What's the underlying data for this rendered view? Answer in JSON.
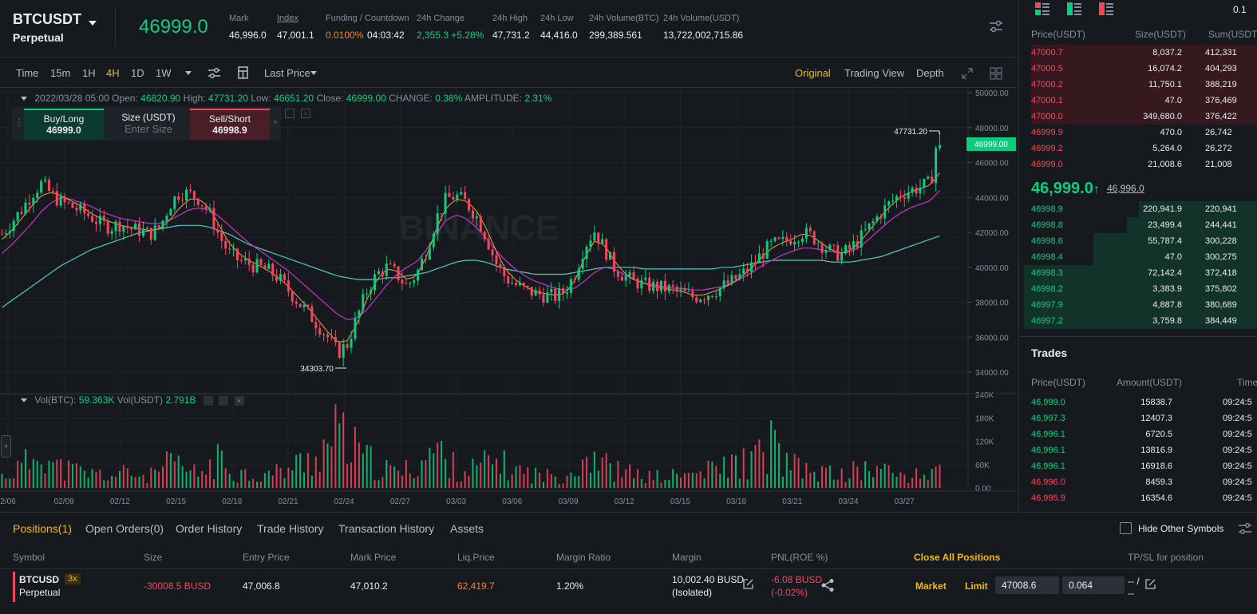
{
  "header": {
    "symbol": "BTCUSDT",
    "contract": "Perpetual",
    "last_price": "46999.0",
    "stats": [
      {
        "label": "Mark",
        "value": "46,996.0"
      },
      {
        "label": "Index",
        "value": "47,001.1"
      },
      {
        "label": "Funding / Countdown",
        "value": "0.0100%",
        "value2": "04:03:42"
      },
      {
        "label": "24h Change",
        "value": "2,355.3 +5.28%"
      },
      {
        "label": "24h High",
        "value": "47,731.2"
      },
      {
        "label": "24h Low",
        "value": "44,416.0"
      },
      {
        "label": "24h Volume(BTC)",
        "value": "299,389.561"
      },
      {
        "label": "24h Volume(USDT)",
        "value": "13,722,002,715.86"
      }
    ]
  },
  "toolbar": {
    "intervals": [
      "Time",
      "15m",
      "1H",
      "4H",
      "1D",
      "1W"
    ],
    "active_interval": "4H",
    "price_type": "Last Price",
    "views": [
      "Original",
      "Trading View",
      "Depth"
    ],
    "active_view": "Original"
  },
  "chart": {
    "ohlc": {
      "date": "2022/03/28 05:00",
      "open_label": "Open:",
      "open": "46820.90",
      "high_label": "High:",
      "high": "47731.20",
      "low_label": "Low:",
      "low": "46651.20",
      "close_label": "Close:",
      "close": "46999.00",
      "change_label": "CHANGE:",
      "change": "0.38%",
      "amp_label": "AMPLITUDE:",
      "amp": "2.31%"
    },
    "order_widget": {
      "buy_label": "Buy/Long",
      "buy_price": "46999.0",
      "size_label": "Size (USDT)",
      "size_placeholder": "Enter Size",
      "sell_label": "Sell/Short",
      "sell_price": "46998.9"
    },
    "price_axis": [
      "50000.00",
      "48000.00",
      "46000.00",
      "44000.00",
      "42000.00",
      "40000.00",
      "38000.00",
      "36000.00",
      "34000.00"
    ],
    "current_price_tag": "46999.00",
    "high_marker": "47731.20",
    "low_marker": "34303.70",
    "vol_labels": {
      "btc_label": "Vol(BTC):",
      "btc": "59.363K",
      "usdt_label": "Vol(USDT)",
      "usdt": "2.791B"
    },
    "vol_axis": [
      "240K",
      "180K",
      "120K",
      "60K",
      "0.00"
    ],
    "date_axis": [
      "2/06",
      "02/09",
      "02/12",
      "02/15",
      "02/18",
      "02/21",
      "02/24",
      "02/27",
      "03/03",
      "03/06",
      "03/09",
      "03/12",
      "03/15",
      "03/18",
      "03/21",
      "03/24",
      "03/27"
    ],
    "watermark": "BINANCE"
  },
  "chart_data": {
    "type": "candlestick",
    "y_range": [
      34000,
      50000
    ],
    "close_path": [
      41900,
      42600,
      43300,
      44200,
      44800,
      44200,
      43700,
      43500,
      43200,
      42900,
      42500,
      42300,
      42500,
      42200,
      42100,
      41900,
      42300,
      43600,
      44300,
      44200,
      43900,
      43100,
      41800,
      40800,
      40400,
      40200,
      40000,
      39800,
      39400,
      38700,
      38000,
      37400,
      36700,
      36000,
      35100,
      35600,
      37200,
      38700,
      39600,
      40000,
      39600,
      38900,
      39600,
      41000,
      42800,
      43900,
      44100,
      43700,
      43000,
      41800,
      40300,
      39400,
      39000,
      38700,
      38500,
      38400,
      38300,
      38600,
      39600,
      41200,
      42100,
      41100,
      40000,
      39500,
      39200,
      39000,
      38900,
      38800,
      38700,
      38500,
      38300,
      38400,
      38600,
      38900,
      39200,
      39600,
      40100,
      40800,
      41300,
      41400,
      41700,
      42000,
      41800,
      41300,
      40900,
      40700,
      41100,
      41700,
      42400,
      43100,
      43700,
      44200,
      44400,
      44600,
      44800,
      46999
    ],
    "ma_fast": [
      41600,
      42100,
      42800,
      43500,
      44100,
      44300,
      44100,
      43800,
      43500,
      43100,
      42800,
      42600,
      42400,
      42300,
      42200,
      42100,
      42200,
      42700,
      43400,
      43900,
      43900,
      43400,
      42400,
      41400,
      40800,
      40400,
      40100,
      39800,
      39400,
      38900,
      38300,
      37700,
      37000,
      36300,
      35700,
      35800,
      36800,
      38200,
      39300,
      39900,
      39800,
      39300,
      39500,
      40600,
      42200,
      43400,
      43900,
      43800,
      43300,
      42300,
      41000,
      39900,
      39300,
      38900,
      38600,
      38500,
      38400,
      38500,
      39200,
      40500,
      41500,
      41300,
      40400,
      39700,
      39300,
      39100,
      38900,
      38800,
      38700,
      38600,
      38400,
      38400,
      38600,
      38800,
      39100,
      39500,
      40000,
      40600,
      41100,
      41400,
      41600,
      41900,
      41800,
      41400,
      41000,
      40800,
      41000,
      41500,
      42200,
      42900,
      43500,
      44000,
      44300,
      44500,
      44700,
      45400
    ],
    "ma_mid": [
      40800,
      41300,
      41900,
      42500,
      43200,
      43700,
      44000,
      43900,
      43700,
      43500,
      43200,
      43000,
      42800,
      42700,
      42600,
      42500,
      42500,
      42700,
      43000,
      43300,
      43400,
      43300,
      42900,
      42400,
      41900,
      41400,
      41000,
      40600,
      40200,
      39800,
      39300,
      38800,
      38300,
      37800,
      37300,
      37000,
      37100,
      37600,
      38300,
      39000,
      39600,
      40000,
      40300,
      41000,
      41900,
      42700,
      43000,
      42800,
      42300,
      41700,
      41000,
      40400,
      39900,
      39500,
      39200,
      39000,
      38800,
      38700,
      38800,
      39200,
      39700,
      40000,
      39900,
      39600,
      39300,
      39100,
      39000,
      38900,
      38800,
      38800,
      38700,
      38700,
      38800,
      38900,
      39100,
      39400,
      39700,
      40100,
      40400,
      40700,
      40900,
      41100,
      41100,
      41000,
      40900,
      40800,
      40900,
      41200,
      41700,
      42200,
      42700,
      43100,
      43400,
      43600,
      43800,
      44400
    ],
    "ma_slow": [
      37700,
      38100,
      38500,
      38900,
      39300,
      39700,
      40100,
      40400,
      40700,
      41000,
      41200,
      41400,
      41600,
      41800,
      42000,
      42100,
      42200,
      42300,
      42400,
      42400,
      42400,
      42300,
      42100,
      41900,
      41600,
      41300,
      41100,
      40900,
      40700,
      40500,
      40300,
      40100,
      39900,
      39700,
      39500,
      39400,
      39300,
      39300,
      39300,
      39400,
      39400,
      39500,
      39600,
      39700,
      39900,
      40100,
      40300,
      40400,
      40400,
      40300,
      40100,
      39900,
      39800,
      39700,
      39600,
      39600,
      39600,
      39600,
      39700,
      39800,
      39900,
      40000,
      40000,
      40000,
      40000,
      39900,
      39900,
      39900,
      39900,
      39900,
      39900,
      39900,
      39900,
      40000,
      40000,
      40100,
      40200,
      40300,
      40400,
      40400,
      40400,
      40400,
      40400,
      40400,
      40300,
      40300,
      40300,
      40400,
      40500,
      40600,
      40800,
      41000,
      41200,
      41400,
      41600,
      41800
    ],
    "volume_range": [
      0,
      240000
    ],
    "volume_avg": [
      30000,
      40000,
      55000,
      70000,
      130000,
      60000,
      50000,
      45000,
      40000,
      35000,
      35000,
      30000,
      35000,
      40000,
      30000,
      30000,
      45000,
      60000,
      55000,
      40000,
      35000,
      55000,
      70000,
      50000,
      40000,
      35000,
      30000,
      35000,
      40000,
      50000,
      60000,
      70000,
      85000,
      110000,
      140000,
      110000,
      90000,
      70000,
      55000,
      45000,
      40000,
      45000,
      60000,
      80000,
      100000,
      70000,
      50000,
      45000,
      50000,
      60000,
      70000,
      55000,
      45000,
      40000,
      35000,
      30000,
      30000,
      35000,
      50000,
      80000,
      90000,
      60000,
      45000,
      40000,
      35000,
      30000,
      28000,
      28000,
      30000,
      32000,
      35000,
      40000,
      45000,
      55000,
      60000,
      65000,
      70000,
      80000,
      120000,
      70000,
      55000,
      45000,
      40000,
      40000,
      35000,
      35000,
      40000,
      45000,
      50000,
      45000,
      40000,
      35000,
      30000,
      30000,
      35000,
      100000
    ]
  },
  "orderbook": {
    "headers": [
      "Price(USDT)",
      "Size(USDT)",
      "Sum(USDT)"
    ],
    "top_value": "0.1",
    "asks": [
      {
        "price": "47000.7",
        "size": "8,037.2",
        "sum": "412,331",
        "depth": 0.95
      },
      {
        "price": "47000.5",
        "size": "16,074.2",
        "sum": "404,293",
        "depth": 0.95
      },
      {
        "price": "47000.2",
        "size": "11,750.1",
        "sum": "388,219",
        "depth": 0.95
      },
      {
        "price": "47000.1",
        "size": "47.0",
        "sum": "376,469",
        "depth": 0.95
      },
      {
        "price": "47000.0",
        "size": "349,680.0",
        "sum": "376,422",
        "depth": 0.95
      },
      {
        "price": "46999.9",
        "size": "470.0",
        "sum": "26,742",
        "depth": 0
      },
      {
        "price": "46999.2",
        "size": "5,264.0",
        "sum": "26,272",
        "depth": 0
      },
      {
        "price": "46999.0",
        "size": "21,008.6",
        "sum": "21,008",
        "depth": 0
      }
    ],
    "mid_price": "46,999.0",
    "mid_arrow": "↑",
    "mark_price": "46,996.0",
    "bids": [
      {
        "price": "46998.9",
        "size": "220,941.9",
        "sum": "220,941",
        "depth": 0.5
      },
      {
        "price": "46998.8",
        "size": "23,499.4",
        "sum": "244,441",
        "depth": 0.55
      },
      {
        "price": "46998.6",
        "size": "55,787.4",
        "sum": "300,228",
        "depth": 0.69
      },
      {
        "price": "46998.4",
        "size": "47.0",
        "sum": "300,275",
        "depth": 0.69
      },
      {
        "price": "46998.3",
        "size": "72,142.4",
        "sum": "372,418",
        "depth": 0.98
      },
      {
        "price": "46998.2",
        "size": "3,383.9",
        "sum": "375,802",
        "depth": 0.98
      },
      {
        "price": "46997.9",
        "size": "4,887.8",
        "sum": "380,689",
        "depth": 0.98
      },
      {
        "price": "46997.2",
        "size": "3,759.8",
        "sum": "384,449",
        "depth": 0.98
      }
    ]
  },
  "trades": {
    "title": "Trades",
    "headers": [
      "Price(USDT)",
      "Amount(USDT)",
      "Time"
    ],
    "rows": [
      {
        "price": "46,999.0",
        "amount": "15838.7",
        "time": "09:24:5",
        "side": "buy"
      },
      {
        "price": "46,997.3",
        "amount": "12407.3",
        "time": "09:24:5",
        "side": "buy"
      },
      {
        "price": "46,996.1",
        "amount": "6720.5",
        "time": "09:24:5",
        "side": "buy"
      },
      {
        "price": "46,996.1",
        "amount": "13816.9",
        "time": "09:24:5",
        "side": "buy"
      },
      {
        "price": "46,996.1",
        "amount": "16918.6",
        "time": "09:24:5",
        "side": "buy"
      },
      {
        "price": "46,996.0",
        "amount": "8459.3",
        "time": "09:24:5",
        "side": "sell"
      },
      {
        "price": "46,995.9",
        "amount": "16354.6",
        "time": "09:24:5",
        "side": "sell"
      }
    ]
  },
  "bottom": {
    "tabs": [
      "Positions(1)",
      "Open Orders(0)",
      "Order History",
      "Trade History",
      "Transaction History",
      "Assets"
    ],
    "active_tab": "Positions(1)",
    "hide_other_label": "Hide Other Symbols",
    "columns": [
      "Symbol",
      "Size",
      "Entry Price",
      "Mark Price",
      "Liq.Price",
      "Margin Ratio",
      "Margin",
      "PNL(ROE %)"
    ],
    "close_all": "Close All Positions",
    "tpsl_label": "TP/SL for position",
    "position": {
      "symbol": "BTCUSD",
      "leverage": "3x",
      "contract": "Perpetual",
      "size": "-30008.5 BUSD",
      "entry": "47,006.8",
      "mark": "47,010.2",
      "liq": "62,419.7",
      "margin_ratio": "1.20%",
      "margin": "10,002.40 BUSD",
      "margin_mode": "(Isolated)",
      "pnl": "-6.08 BUSD",
      "roe": "(-0.02%)",
      "market_label": "Market",
      "limit_label": "Limit",
      "limit_price": "47008.6",
      "limit_qty": "0.064",
      "tpsl_value": "-- /",
      "tpsl_value2": "--"
    }
  }
}
